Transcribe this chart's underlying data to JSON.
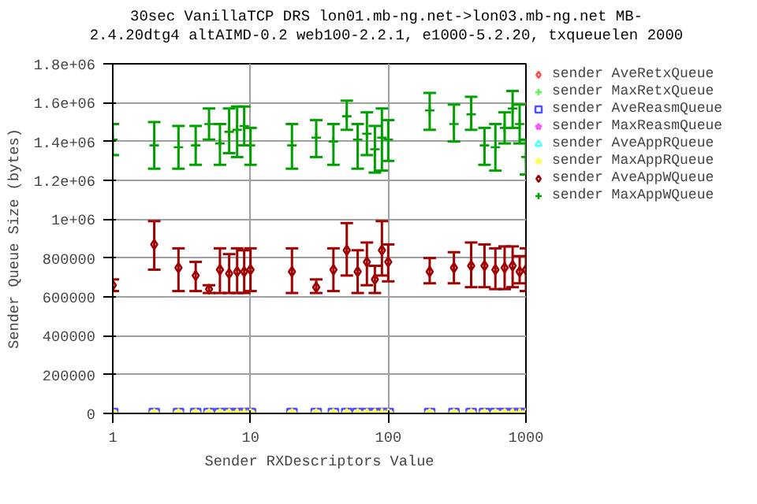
{
  "chart_data": {
    "type": "scatter",
    "title": "30sec VanillaTCP DRS lon01.mb-ng.net->lon03.mb-ng.net MB-",
    "subtitle": "2.4.20dtg4 altAIMD-0.2 web100-2.2.1, e1000-5.2.20, txqueuelen 2000",
    "xlabel": "Sender RXDescriptors Value",
    "ylabel": "Sender Queue Size (bytes)",
    "x": [
      1,
      2,
      3,
      4,
      5,
      6,
      7,
      8,
      9,
      10,
      20,
      30,
      40,
      50,
      60,
      70,
      80,
      90,
      100,
      200,
      300,
      400,
      500,
      600,
      700,
      800,
      900,
      1000
    ],
    "log": "x",
    "xlim": [
      1,
      1000
    ],
    "xticks": [
      1,
      10,
      100,
      1000
    ],
    "ylim": [
      0,
      1800000
    ],
    "yticks": [
      0,
      200000,
      400000,
      600000,
      800000,
      {
        "value": 1000000,
        "label": "1e+06"
      },
      {
        "value": 1200000,
        "label": "1.2e+06"
      },
      {
        "value": 1400000,
        "label": "1.4e+06"
      },
      {
        "value": 1600000,
        "label": "1.6e+06"
      },
      {
        "value": 1800000,
        "label": "1.8e+06"
      }
    ],
    "grid": true,
    "legend": "right",
    "line_style": "solid",
    "series": [
      {
        "name": "sender AveRetxQueue",
        "color": "#ff5050",
        "marker": "diamond",
        "values": [
          null,
          null,
          null,
          null,
          null,
          null,
          null,
          null,
          null,
          null,
          null,
          null,
          null,
          null,
          null,
          null,
          null,
          null,
          null,
          null,
          null,
          null,
          null,
          null,
          null,
          null,
          null,
          null
        ]
      },
      {
        "name": "sender MaxRetxQueue",
        "color": "#50ff50",
        "marker": "cross",
        "values": [
          null,
          null,
          null,
          null,
          null,
          null,
          null,
          null,
          null,
          null,
          null,
          null,
          null,
          null,
          null,
          null,
          null,
          null,
          null,
          null,
          null,
          null,
          null,
          null,
          null,
          null,
          null,
          null
        ]
      },
      {
        "name": "sender AveReasmQueue",
        "color": "#5050ff",
        "marker": "square",
        "values": [
          0,
          0,
          0,
          0,
          0,
          0,
          0,
          0,
          0,
          0,
          0,
          0,
          0,
          0,
          0,
          0,
          0,
          0,
          0,
          0,
          0,
          0,
          0,
          0,
          0,
          0,
          0,
          0
        ]
      },
      {
        "name": "sender MaxReasmQueue",
        "color": "#ff50ff",
        "marker": "star",
        "values": [
          null,
          null,
          null,
          null,
          null,
          null,
          null,
          null,
          null,
          null,
          null,
          null,
          null,
          null,
          null,
          null,
          null,
          null,
          null,
          null,
          null,
          null,
          null,
          null,
          null,
          null,
          null,
          null
        ]
      },
      {
        "name": "sender AveAppRQueue",
        "color": "#50ffff",
        "marker": "triangle",
        "values": [
          null,
          null,
          null,
          null,
          null,
          null,
          null,
          null,
          null,
          null,
          null,
          null,
          null,
          null,
          null,
          null,
          null,
          null,
          null,
          null,
          null,
          null,
          null,
          null,
          null,
          null,
          null,
          null
        ]
      },
      {
        "name": "sender MaxAppRQueue",
        "color": "#ffff50",
        "marker": "star",
        "values": [
          0,
          0,
          0,
          0,
          0,
          0,
          0,
          0,
          0,
          0,
          0,
          0,
          0,
          0,
          0,
          0,
          0,
          0,
          0,
          0,
          0,
          0,
          0,
          0,
          0,
          0,
          0,
          0
        ]
      },
      {
        "name": "sender AveAppWQueue",
        "color": "#a00000",
        "marker": "diamond",
        "values": [
          660000,
          870000,
          750000,
          710000,
          640000,
          740000,
          720000,
          730000,
          730000,
          740000,
          730000,
          650000,
          740000,
          840000,
          730000,
          780000,
          690000,
          840000,
          780000,
          730000,
          750000,
          760000,
          760000,
          740000,
          750000,
          760000,
          730000,
          740000
        ],
        "errors": [
          [
            630000,
            690000
          ],
          [
            740000,
            990000
          ],
          [
            630000,
            850000
          ],
          [
            630000,
            780000
          ],
          [
            620000,
            660000
          ],
          [
            620000,
            850000
          ],
          [
            620000,
            820000
          ],
          [
            620000,
            850000
          ],
          [
            620000,
            840000
          ],
          [
            630000,
            850000
          ],
          [
            620000,
            850000
          ],
          [
            620000,
            690000
          ],
          [
            630000,
            850000
          ],
          [
            710000,
            980000
          ],
          [
            620000,
            840000
          ],
          [
            660000,
            880000
          ],
          [
            620000,
            760000
          ],
          [
            710000,
            990000
          ],
          [
            680000,
            870000
          ],
          [
            670000,
            800000
          ],
          [
            670000,
            830000
          ],
          [
            650000,
            880000
          ],
          [
            650000,
            870000
          ],
          [
            640000,
            850000
          ],
          [
            640000,
            860000
          ],
          [
            650000,
            860000
          ],
          [
            670000,
            810000
          ],
          [
            630000,
            850000
          ]
        ]
      },
      {
        "name": "sender MaxAppWQueue",
        "color": "#00a000",
        "marker": "cross",
        "values": [
          1410000,
          1380000,
          1370000,
          1380000,
          1490000,
          1390000,
          1450000,
          1460000,
          1480000,
          1380000,
          1380000,
          1420000,
          1400000,
          1530000,
          1410000,
          1440000,
          1360000,
          1420000,
          1410000,
          1560000,
          1490000,
          1540000,
          1380000,
          1370000,
          1470000,
          1570000,
          1490000,
          1320000
        ],
        "errors": [
          [
            1330000,
            1490000
          ],
          [
            1260000,
            1500000
          ],
          [
            1260000,
            1480000
          ],
          [
            1280000,
            1480000
          ],
          [
            1410000,
            1570000
          ],
          [
            1280000,
            1490000
          ],
          [
            1340000,
            1570000
          ],
          [
            1320000,
            1580000
          ],
          [
            1380000,
            1580000
          ],
          [
            1280000,
            1470000
          ],
          [
            1260000,
            1490000
          ],
          [
            1320000,
            1510000
          ],
          [
            1280000,
            1490000
          ],
          [
            1460000,
            1610000
          ],
          [
            1260000,
            1490000
          ],
          [
            1330000,
            1550000
          ],
          [
            1240000,
            1480000
          ],
          [
            1250000,
            1570000
          ],
          [
            1300000,
            1510000
          ],
          [
            1460000,
            1650000
          ],
          [
            1400000,
            1590000
          ],
          [
            1460000,
            1630000
          ],
          [
            1280000,
            1470000
          ],
          [
            1250000,
            1490000
          ],
          [
            1390000,
            1550000
          ],
          [
            1470000,
            1660000
          ],
          [
            1390000,
            1590000
          ],
          [
            1230000,
            1410000
          ]
        ]
      }
    ]
  }
}
